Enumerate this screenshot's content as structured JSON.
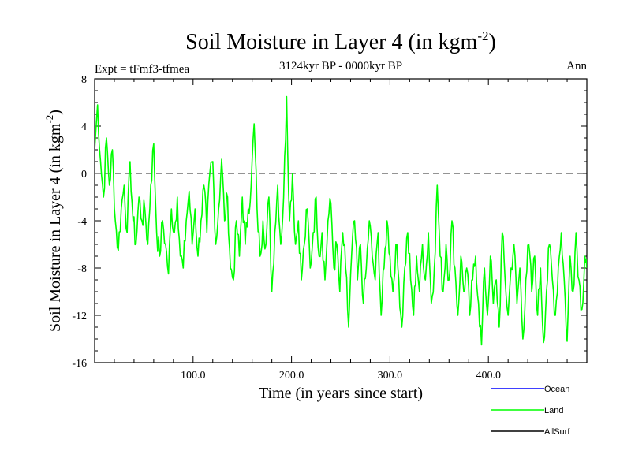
{
  "chart_data": {
    "type": "line",
    "title_main": "Soil Moisture in Layer 4 (in kgm",
    "title_sup": "-2",
    "title_close": ")",
    "expt_label": "Expt = tFmf3-tfmea",
    "period_label": "3124kyr BP - 0000kyr BP",
    "season_label": "Ann",
    "xlabel": "Time (in years since start)",
    "ylabel_main": "Soil Moisture in Layer 4 (in kgm",
    "ylabel_sup": "-2",
    "ylabel_close": ")",
    "xlim": [
      0,
      500
    ],
    "ylim": [
      -16,
      8
    ],
    "x_ticks": [
      {
        "value": 100,
        "label": "100.0"
      },
      {
        "value": 200,
        "label": "200.0"
      },
      {
        "value": 300,
        "label": "300.0"
      },
      {
        "value": 400,
        "label": "400.0"
      }
    ],
    "y_ticks": [
      {
        "value": 8,
        "label": "8"
      },
      {
        "value": 4,
        "label": "4"
      },
      {
        "value": 0,
        "label": "0"
      },
      {
        "value": -4,
        "label": "-4"
      },
      {
        "value": -8,
        "label": "-8"
      },
      {
        "value": -12,
        "label": "-12"
      },
      {
        "value": -16,
        "label": "-16"
      }
    ],
    "reference_line": 0,
    "legend": [
      {
        "name": "Ocean",
        "color": "#0000ff"
      },
      {
        "name": "Land",
        "color": "#00ff00"
      },
      {
        "name": "AllSurf",
        "color": "#000000"
      }
    ],
    "series": [
      {
        "name": "Land",
        "color": "#00ff00",
        "anchors": [
          [
            0,
            2
          ],
          [
            3,
            5.8
          ],
          [
            6,
            1
          ],
          [
            9,
            -2
          ],
          [
            12,
            3
          ],
          [
            15,
            -1
          ],
          [
            18,
            2
          ],
          [
            21,
            -4
          ],
          [
            24,
            -6.5
          ],
          [
            27,
            -3
          ],
          [
            30,
            -1
          ],
          [
            33,
            -5
          ],
          [
            36,
            1
          ],
          [
            39,
            -4
          ],
          [
            42,
            -6
          ],
          [
            45,
            -2
          ],
          [
            48,
            -4
          ],
          [
            51,
            -3
          ],
          [
            54,
            -6
          ],
          [
            57,
            -1
          ],
          [
            60,
            2.5
          ],
          [
            63,
            -5
          ],
          [
            66,
            -7
          ],
          [
            69,
            -4
          ],
          [
            72,
            -6
          ],
          [
            75,
            -8.5
          ],
          [
            78,
            -3
          ],
          [
            81,
            -5
          ],
          [
            84,
            -2
          ],
          [
            87,
            -7
          ],
          [
            90,
            -8
          ],
          [
            93,
            -4
          ],
          [
            96,
            -1.5
          ],
          [
            99,
            -6
          ],
          [
            102,
            -3
          ],
          [
            105,
            -7
          ],
          [
            108,
            -4
          ],
          [
            111,
            -1
          ],
          [
            114,
            -5
          ],
          [
            117,
            0
          ],
          [
            120,
            1
          ],
          [
            123,
            -6
          ],
          [
            126,
            -3
          ],
          [
            129,
            1.2
          ],
          [
            132,
            -4
          ],
          [
            135,
            -2
          ],
          [
            138,
            -8
          ],
          [
            141,
            -9
          ],
          [
            144,
            -4
          ],
          [
            147,
            -7
          ],
          [
            150,
            -2
          ],
          [
            153,
            -6
          ],
          [
            156,
            -3
          ],
          [
            159,
            -1
          ],
          [
            162,
            4.2
          ],
          [
            165,
            -3
          ],
          [
            168,
            -7
          ],
          [
            171,
            -4
          ],
          [
            174,
            -6
          ],
          [
            177,
            -2
          ],
          [
            180,
            -10
          ],
          [
            183,
            -5
          ],
          [
            186,
            -1
          ],
          [
            189,
            -6
          ],
          [
            192,
            -2
          ],
          [
            195,
            6.5
          ],
          [
            198,
            -4
          ],
          [
            201,
            0
          ],
          [
            204,
            -6
          ],
          [
            207,
            -4
          ],
          [
            210,
            -9
          ],
          [
            213,
            -6
          ],
          [
            216,
            -3
          ],
          [
            219,
            -8
          ],
          [
            222,
            -5
          ],
          [
            225,
            -2
          ],
          [
            228,
            -7
          ],
          [
            231,
            -5
          ],
          [
            234,
            -9
          ],
          [
            237,
            -4
          ],
          [
            240,
            -2.5
          ],
          [
            243,
            -8
          ],
          [
            246,
            -6
          ],
          [
            249,
            -10
          ],
          [
            252,
            -5
          ],
          [
            255,
            -8
          ],
          [
            258,
            -13
          ],
          [
            261,
            -7
          ],
          [
            264,
            -4
          ],
          [
            267,
            -9
          ],
          [
            270,
            -6
          ],
          [
            273,
            -11
          ],
          [
            276,
            -8
          ],
          [
            279,
            -4
          ],
          [
            282,
            -7
          ],
          [
            285,
            -9
          ],
          [
            288,
            -5
          ],
          [
            291,
            -12
          ],
          [
            294,
            -8
          ],
          [
            297,
            -4
          ],
          [
            300,
            -7
          ],
          [
            303,
            -10
          ],
          [
            306,
            -6
          ],
          [
            309,
            -9
          ],
          [
            312,
            -13
          ],
          [
            315,
            -8
          ],
          [
            318,
            -5
          ],
          [
            321,
            -9
          ],
          [
            324,
            -12
          ],
          [
            327,
            -7
          ],
          [
            330,
            -10
          ],
          [
            333,
            -6
          ],
          [
            336,
            -9
          ],
          [
            339,
            -5
          ],
          [
            342,
            -11
          ],
          [
            345,
            -8
          ],
          [
            348,
            -1
          ],
          [
            351,
            -7
          ],
          [
            354,
            -10
          ],
          [
            357,
            -6
          ],
          [
            360,
            -9
          ],
          [
            363,
            -4
          ],
          [
            366,
            -8
          ],
          [
            369,
            -12
          ],
          [
            372,
            -7
          ],
          [
            375,
            -10
          ],
          [
            378,
            -8
          ],
          [
            381,
            -12
          ],
          [
            384,
            -9
          ],
          [
            387,
            -7
          ],
          [
            390,
            -11
          ],
          [
            393,
            -14.5
          ],
          [
            396,
            -8
          ],
          [
            399,
            -12
          ],
          [
            402,
            -7
          ],
          [
            405,
            -11
          ],
          [
            408,
            -9
          ],
          [
            411,
            -13
          ],
          [
            414,
            -5
          ],
          [
            417,
            -9
          ],
          [
            420,
            -12
          ],
          [
            423,
            -8
          ],
          [
            426,
            -6
          ],
          [
            429,
            -11
          ],
          [
            432,
            -8
          ],
          [
            435,
            -14
          ],
          [
            438,
            -9
          ],
          [
            441,
            -6
          ],
          [
            444,
            -10
          ],
          [
            447,
            -7
          ],
          [
            450,
            -12
          ],
          [
            453,
            -8
          ],
          [
            456,
            -14.3
          ],
          [
            459,
            -10
          ],
          [
            462,
            -6
          ],
          [
            465,
            -9
          ],
          [
            468,
            -12
          ],
          [
            471,
            -8
          ],
          [
            474,
            -5
          ],
          [
            477,
            -9
          ],
          [
            480,
            -14.2
          ],
          [
            483,
            -7
          ],
          [
            486,
            -10
          ],
          [
            489,
            -5
          ],
          [
            492,
            -9
          ],
          [
            495,
            -11.5
          ],
          [
            498,
            -7
          ],
          [
            500,
            -8
          ]
        ]
      }
    ]
  }
}
